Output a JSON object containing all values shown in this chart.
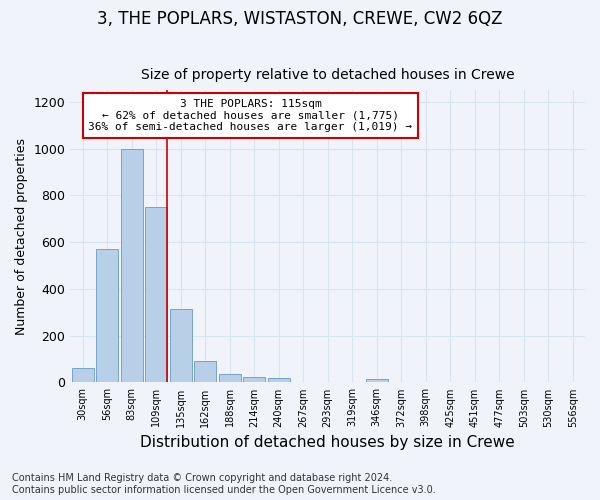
{
  "title": "3, THE POPLARS, WISTASTON, CREWE, CW2 6QZ",
  "subtitle": "Size of property relative to detached houses in Crewe",
  "xlabel": "Distribution of detached houses by size in Crewe",
  "ylabel": "Number of detached properties",
  "footer_line1": "Contains HM Land Registry data © Crown copyright and database right 2024.",
  "footer_line2": "Contains public sector information licensed under the Open Government Licence v3.0.",
  "categories": [
    "30sqm",
    "56sqm",
    "83sqm",
    "109sqm",
    "135sqm",
    "162sqm",
    "188sqm",
    "214sqm",
    "240sqm",
    "267sqm",
    "293sqm",
    "319sqm",
    "346sqm",
    "372sqm",
    "398sqm",
    "425sqm",
    "451sqm",
    "477sqm",
    "503sqm",
    "530sqm",
    "556sqm"
  ],
  "values": [
    62,
    570,
    1000,
    750,
    315,
    90,
    38,
    25,
    18,
    0,
    0,
    0,
    15,
    0,
    0,
    0,
    0,
    0,
    0,
    0,
    0
  ],
  "bar_color": "#b8cfe8",
  "bar_edge_color": "#6699cc",
  "highlight_bar_index": 3,
  "highlight_line_color": "#cc0000",
  "annotation_text": "3 THE POPLARS: 115sqm\n← 62% of detached houses are smaller (1,775)\n36% of semi-detached houses are larger (1,019) →",
  "annotation_box_color": "#ffffff",
  "annotation_box_edge_color": "#cc0000",
  "ylim": [
    0,
    1250
  ],
  "yticks": [
    0,
    200,
    400,
    600,
    800,
    1000,
    1200
  ],
  "background_color": "#f0f4fa",
  "plot_bg_color": "#f0f4fa",
  "grid_color": "#d8e4f0",
  "title_fontsize": 12,
  "subtitle_fontsize": 10,
  "xlabel_fontsize": 11,
  "ylabel_fontsize": 9,
  "footer_fontsize": 7
}
